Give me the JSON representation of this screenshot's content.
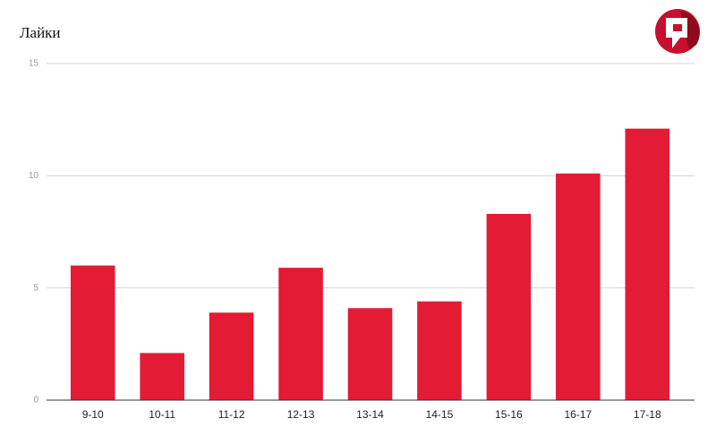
{
  "chart_data": {
    "type": "bar",
    "title": "Лайки",
    "categories": [
      "9-10",
      "10-11",
      "11-12",
      "12-13",
      "13-14",
      "14-15",
      "15-16",
      "16-17",
      "17-18"
    ],
    "values": [
      6.0,
      2.1,
      3.9,
      5.9,
      4.1,
      4.4,
      8.3,
      10.1,
      12.1
    ],
    "color": "#e31b35",
    "ylim": [
      0,
      15
    ],
    "yticks": [
      0,
      5,
      10,
      15
    ],
    "grid": true
  }
}
